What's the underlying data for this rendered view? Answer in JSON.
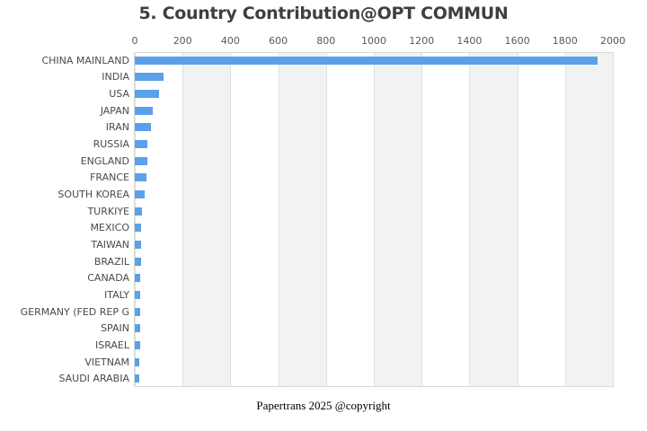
{
  "title": "5. Country Contribution@OPT COMMUN",
  "footer": "Papertrans 2025 @copyright",
  "colors": {
    "bar": "#5BA0EA",
    "band": "#F2F2F2",
    "gridline": "#E0E0E0",
    "plot_border": "#D9D9D9",
    "title_text": "#3F3F3F",
    "tick_text": "#595959",
    "label_text": "#4A4A4A"
  },
  "chart_data": {
    "type": "bar",
    "orientation": "horizontal",
    "title": "5. Country Contribution@OPT COMMUN",
    "xlabel": "",
    "ylabel": "",
    "xlim": [
      0,
      2000
    ],
    "xticks": [
      0,
      200,
      400,
      600,
      800,
      1000,
      1200,
      1400,
      1600,
      1800,
      2000
    ],
    "axis_position": "top",
    "grid": true,
    "banded_background": true,
    "categories": [
      "CHINA MAINLAND",
      "INDIA",
      "USA",
      "JAPAN",
      "IRAN",
      "RUSSIA",
      "ENGLAND",
      "FRANCE",
      "SOUTH KOREA",
      "TURKIYE",
      "MEXICO",
      "TAIWAN",
      "BRAZIL",
      "CANADA",
      "ITALY",
      "GERMANY (FED REP G",
      "SPAIN",
      "ISRAEL",
      "VIETNAM",
      "SAUDI ARABIA"
    ],
    "values": [
      1936,
      122,
      103,
      77,
      66,
      52,
      51,
      49,
      43,
      31,
      28,
      26,
      25,
      24,
      23,
      22,
      21,
      21,
      20,
      19
    ]
  }
}
